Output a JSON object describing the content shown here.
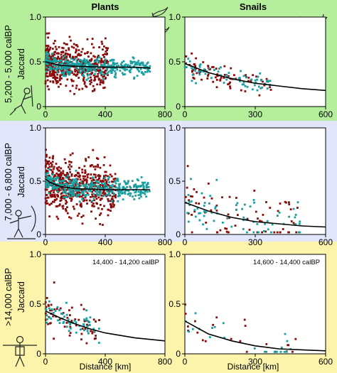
{
  "figure": {
    "column_headers": [
      "Plants",
      "Snails"
    ],
    "row_labels": [
      [
        "5,200 - 5,000 calBP",
        "Jaccard"
      ],
      [
        "7,000 - 6,800 calBP",
        "Jaccard"
      ],
      [
        ">14,000 calBP",
        "Jaccard"
      ]
    ],
    "x_axis_label": "Distance [km]",
    "row_band_colors": [
      "#b6ef9c",
      "#e2e6fa",
      "#fcf4ab"
    ],
    "series_colors": [
      "#8b0a0a",
      "#18a0a0"
    ]
  },
  "chart_data": [
    {
      "id": "plants-5200",
      "type": "scatter",
      "title": "",
      "xlabel": "",
      "ylabel": "Jaccard",
      "xlim": [
        0,
        800
      ],
      "ylim": [
        0,
        1
      ],
      "xticks": [
        0,
        400,
        800
      ],
      "yticks": [
        0,
        0.5,
        1.0
      ],
      "annotation": "",
      "points_red": {
        "count": 520,
        "x_range": [
          0,
          420
        ],
        "y_mean": 0.45,
        "y_spread": 0.12
      },
      "points_teal": {
        "count": 380,
        "x_range": [
          0,
          700
        ],
        "y_mean": 0.45,
        "y_spread": 0.05
      },
      "fit": [
        [
          0,
          0.5
        ],
        [
          100,
          0.46
        ],
        [
          200,
          0.45
        ],
        [
          400,
          0.44
        ],
        [
          600,
          0.44
        ],
        [
          700,
          0.43
        ]
      ]
    },
    {
      "id": "snails-5200",
      "type": "scatter",
      "title": "",
      "xlabel": "",
      "ylabel": "",
      "xlim": [
        0,
        600
      ],
      "ylim": [
        0,
        1
      ],
      "xticks": [
        0,
        300,
        600
      ],
      "yticks": [
        0,
        0.5,
        1.0
      ],
      "annotation": "",
      "points_red": {
        "count": 80,
        "x_range": [
          0,
          370
        ],
        "y_mean": 0.35,
        "y_spread": 0.07
      },
      "points_teal": {
        "count": 70,
        "x_range": [
          0,
          380
        ],
        "y_mean": 0.33,
        "y_spread": 0.05
      },
      "fit": [
        [
          0,
          0.48
        ],
        [
          100,
          0.38
        ],
        [
          200,
          0.31
        ],
        [
          300,
          0.26
        ],
        [
          400,
          0.23
        ],
        [
          500,
          0.2
        ],
        [
          600,
          0.18
        ]
      ]
    },
    {
      "id": "plants-7000",
      "type": "scatter",
      "title": "",
      "xlabel": "",
      "ylabel": "Jaccard",
      "xlim": [
        0,
        800
      ],
      "ylim": [
        0,
        1
      ],
      "xticks": [
        0,
        400,
        800
      ],
      "yticks": [
        0,
        0.5,
        1.0
      ],
      "annotation": "",
      "points_red": {
        "count": 560,
        "x_range": [
          0,
          470
        ],
        "y_mean": 0.44,
        "y_spread": 0.12
      },
      "points_teal": {
        "count": 380,
        "x_range": [
          0,
          700
        ],
        "y_mean": 0.43,
        "y_spread": 0.05
      },
      "fit": [
        [
          0,
          0.52
        ],
        [
          30,
          0.49
        ],
        [
          100,
          0.45
        ],
        [
          200,
          0.43
        ],
        [
          400,
          0.42
        ],
        [
          700,
          0.42
        ]
      ]
    },
    {
      "id": "snails-7000",
      "type": "scatter",
      "title": "",
      "xlabel": "",
      "ylabel": "",
      "xlim": [
        0,
        600
      ],
      "ylim": [
        0,
        1
      ],
      "xticks": [
        0,
        300,
        600
      ],
      "yticks": [
        0,
        0.5,
        1.0
      ],
      "annotation": "",
      "points_red": {
        "count": 70,
        "x_range": [
          0,
          500
        ],
        "y_mean": 0.22,
        "y_spread": 0.14
      },
      "points_teal": {
        "count": 70,
        "x_range": [
          0,
          500
        ],
        "y_mean": 0.2,
        "y_spread": 0.12
      },
      "fit": [
        [
          0,
          0.3
        ],
        [
          100,
          0.22
        ],
        [
          200,
          0.16
        ],
        [
          300,
          0.12
        ],
        [
          400,
          0.1
        ],
        [
          500,
          0.08
        ],
        [
          600,
          0.07
        ]
      ]
    },
    {
      "id": "plants-14000",
      "type": "scatter",
      "title": "",
      "xlabel": "Distance [km]",
      "ylabel": "Jaccard",
      "xlim": [
        0,
        800
      ],
      "ylim": [
        0,
        1
      ],
      "xticks": [
        0,
        400,
        800
      ],
      "yticks": [
        0,
        0.5,
        1.0
      ],
      "annotation": "14,400 - 14,200 calBP",
      "points_red": {
        "count": 60,
        "x_range": [
          0,
          360
        ],
        "y_mean": 0.34,
        "y_spread": 0.09
      },
      "points_teal": {
        "count": 60,
        "x_range": [
          0,
          360
        ],
        "y_mean": 0.32,
        "y_spread": 0.06
      },
      "fit": [
        [
          0,
          0.43
        ],
        [
          100,
          0.36
        ],
        [
          200,
          0.3
        ],
        [
          300,
          0.25
        ],
        [
          400,
          0.21
        ],
        [
          600,
          0.16
        ],
        [
          800,
          0.13
        ]
      ]
    },
    {
      "id": "snails-14000",
      "type": "scatter",
      "title": "",
      "xlabel": "Distance [km]",
      "ylabel": "",
      "xlim": [
        0,
        600
      ],
      "ylim": [
        0,
        1
      ],
      "xticks": [
        0,
        300,
        600
      ],
      "yticks": [
        0,
        0.5,
        1.0
      ],
      "annotation": "14,600 - 14,400 calBP",
      "points_red": {
        "count": 22,
        "x_range": [
          0,
          480
        ],
        "y_mean": 0.12,
        "y_spread": 0.1
      },
      "points_teal": {
        "count": 22,
        "x_range": [
          0,
          480
        ],
        "y_mean": 0.1,
        "y_spread": 0.08
      },
      "fit": [
        [
          0,
          0.33
        ],
        [
          100,
          0.2
        ],
        [
          200,
          0.13
        ],
        [
          300,
          0.08
        ],
        [
          400,
          0.05
        ],
        [
          500,
          0.04
        ],
        [
          600,
          0.03
        ]
      ]
    }
  ]
}
